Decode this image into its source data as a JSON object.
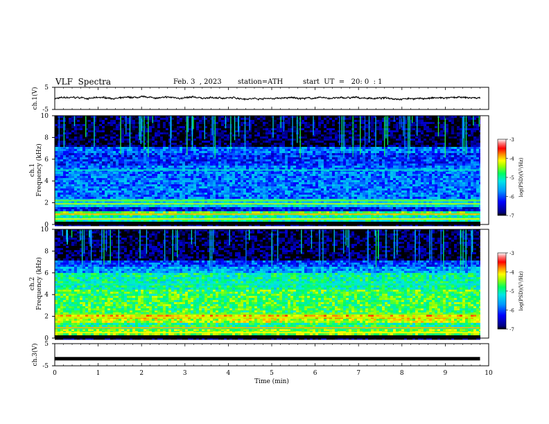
{
  "header": {
    "title": "VLF  Spectra",
    "date": "Feb. 3  , 2023",
    "station": "station=ATH",
    "start": "start  UT  =   20: 0  : 1"
  },
  "chart_data": [
    {
      "type": "line",
      "panel": "ch1-waveform",
      "ylabel": "ch.1(V)",
      "ylim": [
        -5,
        5
      ],
      "yticks": [
        "5",
        "-5"
      ],
      "xlim": [
        0,
        10
      ],
      "description_values": {
        "mean": 0.1,
        "spread": 0.6
      }
    },
    {
      "type": "heatmap",
      "panel": "ch1-spectrogram",
      "ylabel": "ch.1\nFrequency (kHz)",
      "ylabel_lines": [
        "ch.1",
        "Frequency (kHz)"
      ],
      "ylim": [
        0,
        10
      ],
      "yticks": [
        "0",
        "2",
        "4",
        "6",
        "8",
        "10"
      ],
      "xlim": [
        0,
        10
      ],
      "data_end_min": 9.8,
      "colorbar": {
        "label": "log(PSD)(V²/Hz)",
        "ticks": [
          "-3",
          "-4",
          "-5",
          "-6",
          "-7"
        ],
        "range": [
          -7,
          -3
        ]
      },
      "bands": [
        {
          "f_from": 0,
          "f_to": 0.3,
          "level": -7.0
        },
        {
          "f_from": 0.3,
          "f_to": 0.8,
          "level": -5.2
        },
        {
          "f_from": 0.8,
          "f_to": 1.2,
          "level": -4.8
        },
        {
          "f_from": 1.2,
          "f_to": 1.6,
          "level": -6.3
        },
        {
          "f_from": 1.6,
          "f_to": 2.4,
          "level": -5.4
        },
        {
          "f_from": 2.4,
          "f_to": 2.8,
          "level": -5.9
        },
        {
          "f_from": 2.8,
          "f_to": 5.5,
          "level": -5.9
        },
        {
          "f_from": 5.5,
          "f_to": 6.5,
          "level": -6.2
        },
        {
          "f_from": 6.5,
          "f_to": 7.2,
          "level": -5.9
        },
        {
          "f_from": 7.2,
          "f_to": 10,
          "level": -6.9
        }
      ]
    },
    {
      "type": "heatmap",
      "panel": "ch2-spectrogram",
      "ylabel": "ch.2\nFrequency (kHz)",
      "ylabel_lines": [
        "ch.2",
        "Frequency (kHz)"
      ],
      "ylim": [
        0,
        10
      ],
      "yticks": [
        "0",
        "2",
        "4",
        "6",
        "8",
        "10"
      ],
      "xlim": [
        0,
        10
      ],
      "data_end_min": 9.8,
      "colorbar": {
        "label": "log(PSD)(V²/Hz)",
        "ticks": [
          "-3",
          "-4",
          "-5",
          "-6",
          "-7"
        ],
        "range": [
          -7,
          -3
        ]
      },
      "bands": [
        {
          "f_from": 0,
          "f_to": 0.3,
          "level": -7.0
        },
        {
          "f_from": 0.3,
          "f_to": 0.9,
          "level": -4.6
        },
        {
          "f_from": 0.9,
          "f_to": 1.4,
          "level": -5.0
        },
        {
          "f_from": 1.4,
          "f_to": 1.8,
          "level": -4.4
        },
        {
          "f_from": 1.8,
          "f_to": 2.2,
          "level": -4.1
        },
        {
          "f_from": 2.2,
          "f_to": 4.5,
          "level": -4.8
        },
        {
          "f_from": 4.5,
          "f_to": 6.0,
          "level": -5.1
        },
        {
          "f_from": 6.0,
          "f_to": 6.6,
          "level": -5.7
        },
        {
          "f_from": 6.6,
          "f_to": 7.2,
          "level": -6.1
        },
        {
          "f_from": 7.2,
          "f_to": 10,
          "level": -6.9
        }
      ]
    },
    {
      "type": "line",
      "panel": "ch3-waveform",
      "ylabel": "ch.3(V)",
      "ylim": [
        -5,
        5
      ],
      "yticks": [
        "5",
        "-5"
      ],
      "xlim": [
        0,
        10
      ],
      "xlabel": "Time  (min)",
      "xticks": [
        "0",
        "1",
        "2",
        "3",
        "4",
        "5",
        "6",
        "7",
        "8",
        "9",
        "10"
      ],
      "description_values": {
        "mean": -1.8,
        "spread": 0.1
      }
    }
  ]
}
